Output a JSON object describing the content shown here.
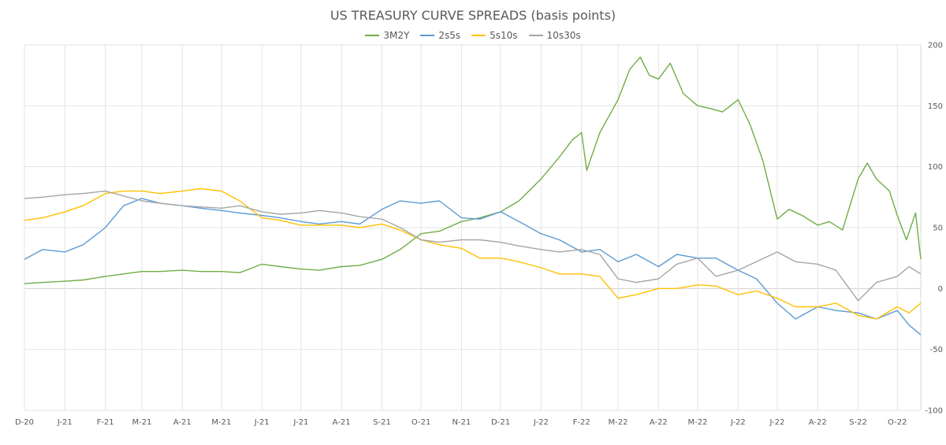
{
  "chart_data": {
    "type": "line",
    "title": "US TREASURY CURVE SPREADS (basis points)",
    "xlabel": "",
    "ylabel": "",
    "ylim": [
      -100,
      200
    ],
    "y_ticks": [
      200,
      150,
      100,
      50,
      0,
      -50,
      -100
    ],
    "x_range": [
      "2020-12-01",
      "2022-10-19"
    ],
    "x_ticks": [
      {
        "label": "D-20",
        "date": "2020-12-01"
      },
      {
        "label": "J-21",
        "date": "2021-01-01"
      },
      {
        "label": "F-21",
        "date": "2021-02-01"
      },
      {
        "label": "M-21",
        "date": "2021-03-01"
      },
      {
        "label": "A-21",
        "date": "2021-04-01"
      },
      {
        "label": "M-21",
        "date": "2021-05-01"
      },
      {
        "label": "J-21",
        "date": "2021-06-01"
      },
      {
        "label": "J-21",
        "date": "2021-07-01"
      },
      {
        "label": "A-21",
        "date": "2021-08-01"
      },
      {
        "label": "S-21",
        "date": "2021-09-01"
      },
      {
        "label": "O-21",
        "date": "2021-10-01"
      },
      {
        "label": "N-21",
        "date": "2021-11-01"
      },
      {
        "label": "D-21",
        "date": "2021-12-01"
      },
      {
        "label": "J-22",
        "date": "2022-01-01"
      },
      {
        "label": "F-22",
        "date": "2022-02-01"
      },
      {
        "label": "M-22",
        "date": "2022-03-01"
      },
      {
        "label": "A-22",
        "date": "2022-04-01"
      },
      {
        "label": "M-22",
        "date": "2022-05-01"
      },
      {
        "label": "J-22",
        "date": "2022-06-01"
      },
      {
        "label": "J-22",
        "date": "2022-07-01"
      },
      {
        "label": "A-22",
        "date": "2022-08-01"
      },
      {
        "label": "S-22",
        "date": "2022-09-01"
      },
      {
        "label": "O-22",
        "date": "2022-10-01"
      }
    ],
    "grid": true,
    "legend_position": "top",
    "series": [
      {
        "name": "3M2Y",
        "color": "#70ad47",
        "points": [
          [
            "2020-12-01",
            4
          ],
          [
            "2020-12-15",
            5
          ],
          [
            "2021-01-01",
            6
          ],
          [
            "2021-01-15",
            7
          ],
          [
            "2021-02-01",
            10
          ],
          [
            "2021-02-15",
            12
          ],
          [
            "2021-03-01",
            14
          ],
          [
            "2021-03-15",
            14
          ],
          [
            "2021-04-01",
            15
          ],
          [
            "2021-04-15",
            14
          ],
          [
            "2021-05-01",
            14
          ],
          [
            "2021-05-15",
            13
          ],
          [
            "2021-06-01",
            20
          ],
          [
            "2021-06-15",
            18
          ],
          [
            "2021-07-01",
            16
          ],
          [
            "2021-07-15",
            15
          ],
          [
            "2021-08-01",
            18
          ],
          [
            "2021-08-15",
            19
          ],
          [
            "2021-09-01",
            24
          ],
          [
            "2021-09-15",
            32
          ],
          [
            "2021-10-01",
            45
          ],
          [
            "2021-10-15",
            47
          ],
          [
            "2021-11-01",
            55
          ],
          [
            "2021-11-15",
            58
          ],
          [
            "2021-12-01",
            63
          ],
          [
            "2021-12-15",
            72
          ],
          [
            "2022-01-01",
            90
          ],
          [
            "2022-01-15",
            108
          ],
          [
            "2022-01-25",
            122
          ],
          [
            "2022-02-01",
            128
          ],
          [
            "2022-02-05",
            97
          ],
          [
            "2022-02-15",
            128
          ],
          [
            "2022-03-01",
            155
          ],
          [
            "2022-03-10",
            180
          ],
          [
            "2022-03-18",
            190
          ],
          [
            "2022-03-25",
            175
          ],
          [
            "2022-04-01",
            172
          ],
          [
            "2022-04-10",
            185
          ],
          [
            "2022-04-20",
            160
          ],
          [
            "2022-05-01",
            150
          ],
          [
            "2022-05-10",
            148
          ],
          [
            "2022-05-20",
            145
          ],
          [
            "2022-06-01",
            155
          ],
          [
            "2022-06-10",
            135
          ],
          [
            "2022-06-20",
            105
          ],
          [
            "2022-07-01",
            57
          ],
          [
            "2022-07-10",
            65
          ],
          [
            "2022-07-20",
            60
          ],
          [
            "2022-08-01",
            52
          ],
          [
            "2022-08-10",
            55
          ],
          [
            "2022-08-20",
            48
          ],
          [
            "2022-09-01",
            90
          ],
          [
            "2022-09-08",
            103
          ],
          [
            "2022-09-15",
            90
          ],
          [
            "2022-09-25",
            80
          ],
          [
            "2022-10-01",
            60
          ],
          [
            "2022-10-08",
            40
          ],
          [
            "2022-10-15",
            62
          ],
          [
            "2022-10-19",
            24
          ]
        ]
      },
      {
        "name": "2s5s",
        "color": "#5b9bd5",
        "points": [
          [
            "2020-12-01",
            24
          ],
          [
            "2020-12-15",
            32
          ],
          [
            "2021-01-01",
            30
          ],
          [
            "2021-01-15",
            36
          ],
          [
            "2021-02-01",
            50
          ],
          [
            "2021-02-15",
            68
          ],
          [
            "2021-03-01",
            74
          ],
          [
            "2021-03-15",
            70
          ],
          [
            "2021-04-01",
            68
          ],
          [
            "2021-04-15",
            66
          ],
          [
            "2021-05-01",
            64
          ],
          [
            "2021-05-15",
            62
          ],
          [
            "2021-06-01",
            60
          ],
          [
            "2021-06-15",
            58
          ],
          [
            "2021-07-01",
            55
          ],
          [
            "2021-07-15",
            53
          ],
          [
            "2021-08-01",
            55
          ],
          [
            "2021-08-15",
            53
          ],
          [
            "2021-09-01",
            65
          ],
          [
            "2021-09-15",
            72
          ],
          [
            "2021-10-01",
            70
          ],
          [
            "2021-10-15",
            72
          ],
          [
            "2021-11-01",
            58
          ],
          [
            "2021-11-15",
            57
          ],
          [
            "2021-12-01",
            63
          ],
          [
            "2021-12-15",
            55
          ],
          [
            "2022-01-01",
            45
          ],
          [
            "2022-01-15",
            40
          ],
          [
            "2022-02-01",
            30
          ],
          [
            "2022-02-15",
            32
          ],
          [
            "2022-03-01",
            22
          ],
          [
            "2022-03-15",
            28
          ],
          [
            "2022-04-01",
            18
          ],
          [
            "2022-04-15",
            28
          ],
          [
            "2022-05-01",
            25
          ],
          [
            "2022-05-15",
            25
          ],
          [
            "2022-06-01",
            15
          ],
          [
            "2022-06-15",
            8
          ],
          [
            "2022-07-01",
            -12
          ],
          [
            "2022-07-15",
            -25
          ],
          [
            "2022-08-01",
            -15
          ],
          [
            "2022-08-15",
            -18
          ],
          [
            "2022-09-01",
            -20
          ],
          [
            "2022-09-15",
            -25
          ],
          [
            "2022-10-01",
            -18
          ],
          [
            "2022-10-10",
            -30
          ],
          [
            "2022-10-19",
            -38
          ]
        ]
      },
      {
        "name": "5s10s",
        "color": "#ffc000",
        "points": [
          [
            "2020-12-01",
            56
          ],
          [
            "2020-12-15",
            58
          ],
          [
            "2021-01-01",
            63
          ],
          [
            "2021-01-15",
            68
          ],
          [
            "2021-02-01",
            78
          ],
          [
            "2021-02-15",
            80
          ],
          [
            "2021-03-01",
            80
          ],
          [
            "2021-03-15",
            78
          ],
          [
            "2021-04-01",
            80
          ],
          [
            "2021-04-15",
            82
          ],
          [
            "2021-05-01",
            80
          ],
          [
            "2021-05-15",
            72
          ],
          [
            "2021-06-01",
            58
          ],
          [
            "2021-06-15",
            56
          ],
          [
            "2021-07-01",
            52
          ],
          [
            "2021-07-15",
            52
          ],
          [
            "2021-08-01",
            52
          ],
          [
            "2021-08-15",
            50
          ],
          [
            "2021-09-01",
            53
          ],
          [
            "2021-09-15",
            48
          ],
          [
            "2021-10-01",
            40
          ],
          [
            "2021-10-15",
            36
          ],
          [
            "2021-11-01",
            33
          ],
          [
            "2021-11-15",
            25
          ],
          [
            "2021-12-01",
            25
          ],
          [
            "2021-12-15",
            22
          ],
          [
            "2022-01-01",
            17
          ],
          [
            "2022-01-15",
            12
          ],
          [
            "2022-02-01",
            12
          ],
          [
            "2022-02-15",
            10
          ],
          [
            "2022-03-01",
            -8
          ],
          [
            "2022-03-15",
            -5
          ],
          [
            "2022-04-01",
            0
          ],
          [
            "2022-04-15",
            0
          ],
          [
            "2022-05-01",
            3
          ],
          [
            "2022-05-15",
            2
          ],
          [
            "2022-06-01",
            -5
          ],
          [
            "2022-06-15",
            -2
          ],
          [
            "2022-07-01",
            -8
          ],
          [
            "2022-07-15",
            -15
          ],
          [
            "2022-08-01",
            -15
          ],
          [
            "2022-08-15",
            -12
          ],
          [
            "2022-09-01",
            -22
          ],
          [
            "2022-09-15",
            -25
          ],
          [
            "2022-10-01",
            -15
          ],
          [
            "2022-10-10",
            -20
          ],
          [
            "2022-10-19",
            -12
          ]
        ]
      },
      {
        "name": "10s30s",
        "color": "#a5a5a5",
        "points": [
          [
            "2020-12-01",
            74
          ],
          [
            "2020-12-15",
            75
          ],
          [
            "2021-01-01",
            77
          ],
          [
            "2021-01-15",
            78
          ],
          [
            "2021-02-01",
            80
          ],
          [
            "2021-02-15",
            76
          ],
          [
            "2021-03-01",
            72
          ],
          [
            "2021-03-15",
            70
          ],
          [
            "2021-04-01",
            68
          ],
          [
            "2021-04-15",
            67
          ],
          [
            "2021-05-01",
            66
          ],
          [
            "2021-05-15",
            68
          ],
          [
            "2021-06-01",
            63
          ],
          [
            "2021-06-15",
            61
          ],
          [
            "2021-07-01",
            62
          ],
          [
            "2021-07-15",
            64
          ],
          [
            "2021-08-01",
            62
          ],
          [
            "2021-08-15",
            59
          ],
          [
            "2021-09-01",
            57
          ],
          [
            "2021-09-15",
            50
          ],
          [
            "2021-10-01",
            40
          ],
          [
            "2021-10-15",
            38
          ],
          [
            "2021-11-01",
            40
          ],
          [
            "2021-11-15",
            40
          ],
          [
            "2021-12-01",
            38
          ],
          [
            "2021-12-15",
            35
          ],
          [
            "2022-01-01",
            32
          ],
          [
            "2022-01-15",
            30
          ],
          [
            "2022-02-01",
            32
          ],
          [
            "2022-02-15",
            28
          ],
          [
            "2022-03-01",
            8
          ],
          [
            "2022-03-15",
            5
          ],
          [
            "2022-04-01",
            8
          ],
          [
            "2022-04-15",
            20
          ],
          [
            "2022-05-01",
            25
          ],
          [
            "2022-05-15",
            10
          ],
          [
            "2022-06-01",
            15
          ],
          [
            "2022-06-15",
            22
          ],
          [
            "2022-07-01",
            30
          ],
          [
            "2022-07-15",
            22
          ],
          [
            "2022-08-01",
            20
          ],
          [
            "2022-08-15",
            15
          ],
          [
            "2022-09-01",
            -10
          ],
          [
            "2022-09-15",
            5
          ],
          [
            "2022-10-01",
            10
          ],
          [
            "2022-10-10",
            18
          ],
          [
            "2022-10-19",
            12
          ]
        ]
      }
    ]
  }
}
